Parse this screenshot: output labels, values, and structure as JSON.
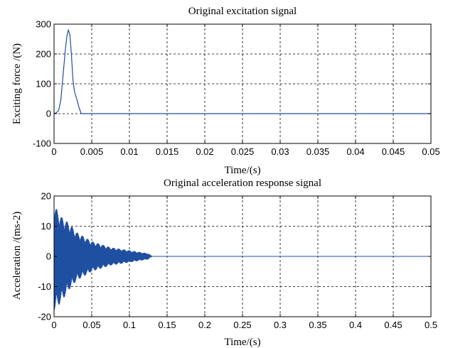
{
  "chart_data": [
    {
      "type": "line",
      "title": "Original excitation signal",
      "xlabel": "Time/(s)",
      "ylabel": "Exciting force /(N)",
      "xlim": [
        0,
        0.05
      ],
      "ylim": [
        -100,
        300
      ],
      "grid": true,
      "color": "#1f4fa0",
      "x_ticks": [
        "0",
        "0.005",
        "0.01",
        "0.015",
        "0.02",
        "0.025",
        "0.03",
        "0.035",
        "0.04",
        "0.045",
        "0.05"
      ],
      "y_ticks": [
        "-100",
        "0",
        "100",
        "200",
        "300"
      ],
      "series": [
        {
          "x": [
            0,
            0.0003,
            0.0006,
            0.0009,
            0.0012,
            0.0015,
            0.0017,
            0.0019,
            0.0021,
            0.0023,
            0.0025,
            0.0027,
            0.003,
            0.0033,
            0.0036,
            0.004,
            0.05
          ],
          "y": [
            0,
            3,
            10,
            45,
            130,
            215,
            260,
            280,
            265,
            200,
            115,
            75,
            50,
            22,
            0,
            0,
            0
          ]
        }
      ]
    },
    {
      "type": "line",
      "title": "Original acceleration response signal",
      "xlabel": "Time/(s)",
      "ylabel": "Acceleration /(ms-2)",
      "xlim": [
        0,
        0.5
      ],
      "ylim": [
        -20,
        20
      ],
      "grid": true,
      "color": "#1f4fa0",
      "x_ticks": [
        "0",
        "0.05",
        "0.1",
        "0.15",
        "0.2",
        "0.25",
        "0.3",
        "0.35",
        "0.4",
        "0.45",
        "0.5"
      ],
      "y_ticks": [
        "-20",
        "-10",
        "0",
        "10",
        "20"
      ],
      "series": [
        {
          "envelope": {
            "t": [
              0,
              0.01,
              0.02,
              0.03,
              0.05,
              0.075,
              0.1,
              0.125,
              0.13,
              0.5
            ],
            "upper": [
              17,
              13,
              11,
              8,
              5,
              3,
              2,
              1,
              0,
              0
            ],
            "lower": [
              -18,
              -15,
              -11,
              -8,
              -5,
              -3,
              -2,
              -1,
              0,
              0
            ]
          }
        }
      ]
    }
  ]
}
